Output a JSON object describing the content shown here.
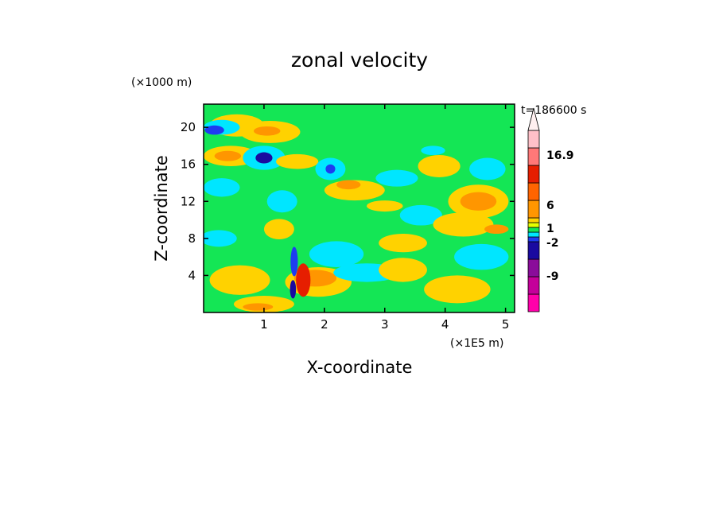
{
  "chart_data": {
    "type": "heatmap",
    "title": "zonal velocity",
    "xlabel": "X-coordinate",
    "ylabel": "Z-coordinate",
    "x_unit": "(×1E5 m)",
    "y_unit": "(×1000 m)",
    "time_label": "t=186600 s",
    "xlim": [
      0,
      5.15
    ],
    "ylim": [
      0,
      22.5
    ],
    "x_ticks": [
      "1",
      "2",
      "3",
      "4",
      "5"
    ],
    "x_tick_values": [
      1,
      2,
      3,
      4,
      5
    ],
    "y_ticks": [
      "4",
      "8",
      "12",
      "16",
      "20"
    ],
    "y_tick_values": [
      4,
      8,
      12,
      16,
      20
    ],
    "background_level_color": "#14e655",
    "colorbar": {
      "labels": [
        "16.9",
        "6",
        "1",
        "-2",
        "-9"
      ],
      "levels": [
        {
          "color": "#ff00aa"
        },
        {
          "color": "#c4009a"
        },
        {
          "color": "#8a0c9a"
        },
        {
          "color": "#1a0aa0"
        },
        {
          "color": "#1e3cf0"
        },
        {
          "color": "#00e6ff"
        },
        {
          "color": "#14e655"
        },
        {
          "color": "#e6ff00"
        },
        {
          "color": "#ffd200"
        },
        {
          "color": "#ff9600"
        },
        {
          "color": "#ff6400"
        },
        {
          "color": "#e61e00"
        },
        {
          "color": "#ff7878"
        },
        {
          "color": "#ffc0c8"
        },
        {
          "color": "#fff0f0"
        }
      ]
    },
    "features": [
      {
        "x": 0.55,
        "z": 20.2,
        "rx": 0.45,
        "rz": 1.2,
        "color": "#ffd200"
      },
      {
        "x": 0.3,
        "z": 20.0,
        "rx": 0.3,
        "rz": 0.8,
        "color": "#00e6ff"
      },
      {
        "x": 0.18,
        "z": 19.7,
        "rx": 0.16,
        "rz": 0.5,
        "color": "#1e3cf0"
      },
      {
        "x": 0.45,
        "z": 16.9,
        "rx": 0.45,
        "rz": 1.1,
        "color": "#ffd200"
      },
      {
        "x": 0.4,
        "z": 16.9,
        "rx": 0.22,
        "rz": 0.55,
        "color": "#ff9600"
      },
      {
        "x": 1.0,
        "z": 16.7,
        "rx": 0.35,
        "rz": 1.3,
        "color": "#00e6ff"
      },
      {
        "x": 1.0,
        "z": 16.7,
        "rx": 0.14,
        "rz": 0.6,
        "color": "#1a0aa0"
      },
      {
        "x": 1.1,
        "z": 19.5,
        "rx": 0.5,
        "rz": 1.2,
        "color": "#ffd200"
      },
      {
        "x": 1.05,
        "z": 19.6,
        "rx": 0.22,
        "rz": 0.5,
        "color": "#ff9600"
      },
      {
        "x": 1.55,
        "z": 16.3,
        "rx": 0.35,
        "rz": 0.8,
        "color": "#ffd200"
      },
      {
        "x": 2.1,
        "z": 15.5,
        "rx": 0.25,
        "rz": 1.2,
        "color": "#00e6ff"
      },
      {
        "x": 2.1,
        "z": 15.5,
        "rx": 0.08,
        "rz": 0.5,
        "color": "#1e3cf0"
      },
      {
        "x": 2.5,
        "z": 13.2,
        "rx": 0.5,
        "rz": 1.1,
        "color": "#ffd200"
      },
      {
        "x": 2.4,
        "z": 13.8,
        "rx": 0.2,
        "rz": 0.5,
        "color": "#ff9600"
      },
      {
        "x": 3.0,
        "z": 11.5,
        "rx": 0.3,
        "rz": 0.6,
        "color": "#ffd200"
      },
      {
        "x": 0.3,
        "z": 13.5,
        "rx": 0.3,
        "rz": 1.0,
        "color": "#00e6ff"
      },
      {
        "x": 1.3,
        "z": 12.0,
        "rx": 0.25,
        "rz": 1.2,
        "color": "#00e6ff"
      },
      {
        "x": 0.25,
        "z": 8.0,
        "rx": 0.3,
        "rz": 0.9,
        "color": "#00e6ff"
      },
      {
        "x": 0.6,
        "z": 3.5,
        "rx": 0.5,
        "rz": 1.6,
        "color": "#ffd200"
      },
      {
        "x": 1.25,
        "z": 9.0,
        "rx": 0.25,
        "rz": 1.1,
        "color": "#ffd200"
      },
      {
        "x": 2.2,
        "z": 6.3,
        "rx": 0.45,
        "rz": 1.4,
        "color": "#00e6ff"
      },
      {
        "x": 1.9,
        "z": 3.3,
        "rx": 0.55,
        "rz": 1.6,
        "color": "#ffd200"
      },
      {
        "x": 1.85,
        "z": 3.7,
        "rx": 0.35,
        "rz": 0.9,
        "color": "#ff9600"
      },
      {
        "x": 1.65,
        "z": 3.5,
        "rx": 0.12,
        "rz": 1.8,
        "color": "#e61e00"
      },
      {
        "x": 1.5,
        "z": 5.5,
        "rx": 0.06,
        "rz": 1.6,
        "color": "#1e3cf0"
      },
      {
        "x": 1.48,
        "z": 2.5,
        "rx": 0.05,
        "rz": 1.0,
        "color": "#1a0aa0"
      },
      {
        "x": 2.7,
        "z": 4.3,
        "rx": 0.55,
        "rz": 1.0,
        "color": "#00e6ff"
      },
      {
        "x": 3.3,
        "z": 4.6,
        "rx": 0.4,
        "rz": 1.3,
        "color": "#ffd200"
      },
      {
        "x": 1.0,
        "z": 0.9,
        "rx": 0.5,
        "rz": 0.9,
        "color": "#ffd200"
      },
      {
        "x": 0.9,
        "z": 0.6,
        "rx": 0.25,
        "rz": 0.4,
        "color": "#ff9600"
      },
      {
        "x": 3.6,
        "z": 10.5,
        "rx": 0.35,
        "rz": 1.1,
        "color": "#00e6ff"
      },
      {
        "x": 3.9,
        "z": 15.8,
        "rx": 0.35,
        "rz": 1.2,
        "color": "#ffd200"
      },
      {
        "x": 3.8,
        "z": 17.5,
        "rx": 0.2,
        "rz": 0.5,
        "color": "#00e6ff"
      },
      {
        "x": 3.2,
        "z": 14.5,
        "rx": 0.35,
        "rz": 0.9,
        "color": "#00e6ff"
      },
      {
        "x": 4.55,
        "z": 12.0,
        "rx": 0.5,
        "rz": 1.8,
        "color": "#ffd200"
      },
      {
        "x": 4.55,
        "z": 12.0,
        "rx": 0.3,
        "rz": 1.0,
        "color": "#ff9600"
      },
      {
        "x": 4.7,
        "z": 15.5,
        "rx": 0.3,
        "rz": 1.2,
        "color": "#00e6ff"
      },
      {
        "x": 4.3,
        "z": 9.5,
        "rx": 0.5,
        "rz": 1.3,
        "color": "#ffd200"
      },
      {
        "x": 4.6,
        "z": 6.0,
        "rx": 0.45,
        "rz": 1.4,
        "color": "#00e6ff"
      },
      {
        "x": 4.2,
        "z": 2.5,
        "rx": 0.55,
        "rz": 1.5,
        "color": "#ffd200"
      },
      {
        "x": 4.85,
        "z": 9.0,
        "rx": 0.2,
        "rz": 0.5,
        "color": "#ff9600"
      },
      {
        "x": 3.3,
        "z": 7.5,
        "rx": 0.4,
        "rz": 1.0,
        "color": "#ffd200"
      }
    ]
  }
}
